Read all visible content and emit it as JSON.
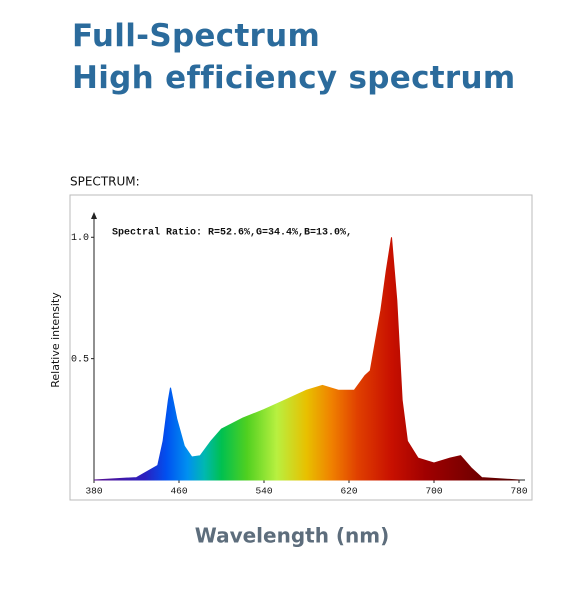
{
  "chart_data": {
    "type": "area",
    "title": "Full-Spectrum",
    "subtitle": "High efficiency spectrum",
    "caption": "SPECTRUM:",
    "annotation": "Spectral Ratio:  R=52.6%,G=34.4%,B=13.0%,",
    "ylabel": "Relative intensity",
    "xlabel": "Wavelength (nm)",
    "x": [
      380,
      420,
      440,
      445,
      450,
      452,
      458,
      465,
      472,
      480,
      490,
      500,
      520,
      540,
      560,
      580,
      595,
      610,
      625,
      635,
      640,
      650,
      655,
      660,
      665,
      670,
      675,
      685,
      700,
      715,
      725,
      735,
      745,
      780
    ],
    "values": [
      0,
      0.01,
      0.06,
      0.16,
      0.33,
      0.38,
      0.25,
      0.14,
      0.095,
      0.1,
      0.16,
      0.21,
      0.255,
      0.29,
      0.33,
      0.37,
      0.39,
      0.37,
      0.37,
      0.43,
      0.45,
      0.7,
      0.86,
      1.0,
      0.74,
      0.33,
      0.16,
      0.09,
      0.07,
      0.09,
      0.1,
      0.05,
      0.01,
      0
    ],
    "xlim": [
      380,
      780
    ],
    "ylim": [
      0,
      1.1
    ],
    "xticks": [
      380,
      460,
      540,
      620,
      700,
      780
    ],
    "yticks": [
      {
        "value": 1,
        "label": "1.0"
      },
      0.5
    ]
  }
}
